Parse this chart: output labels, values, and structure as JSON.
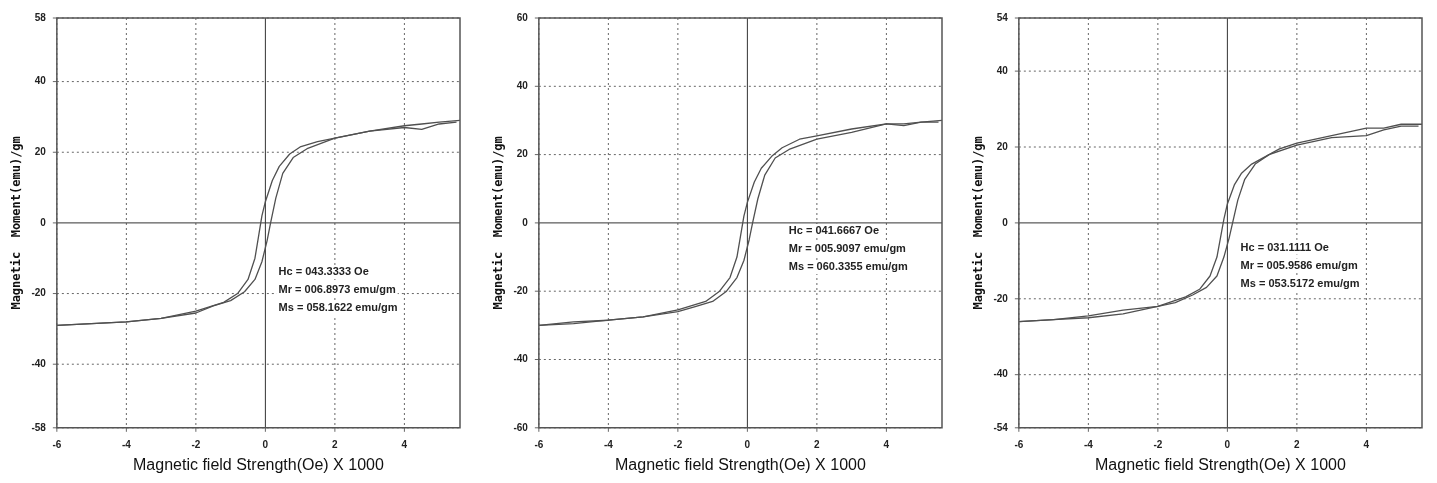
{
  "chart_data": [
    {
      "type": "line",
      "xlabel": "Magnetic field Strength(Oe) X 1000",
      "ylabel": "Magnetic  Moment(emu)/gm",
      "xlim": [
        -6,
        5.6
      ],
      "ylim": [
        -58,
        58
      ],
      "xticks": [
        -6,
        -4,
        -2,
        0,
        2,
        4
      ],
      "yticks": [
        -58,
        -40,
        -20,
        0,
        20,
        40,
        58
      ],
      "grid": true,
      "legend": false,
      "marker": "none",
      "line_style": "solid",
      "annotations": [
        "Hc = 043.3333 Oe",
        "Mr = 006.8973 emu/gm",
        "Ms = 058.1622 emu/gm"
      ],
      "series": [
        {
          "color": "#505050",
          "x": [
            5.6,
            5,
            4.5,
            4,
            3,
            2,
            1.5,
            1,
            0.7,
            0.4,
            0.2,
            0,
            -0.1,
            -0.2,
            -0.3,
            -0.5,
            -0.8,
            -1.2,
            -2,
            -3,
            -4,
            -5,
            -6
          ],
          "values": [
            29,
            28.5,
            28,
            27.5,
            26,
            24,
            23,
            21.5,
            19.5,
            16,
            12,
            6,
            2,
            -4,
            -10,
            -16,
            -20,
            -22.5,
            -25,
            -27,
            -28,
            -28.5,
            -29
          ]
        },
        {
          "color": "#505050",
          "x": [
            -6,
            -5,
            -4,
            -3,
            -2,
            -1.5,
            -1,
            -0.6,
            -0.3,
            -0.1,
            0.05,
            0.15,
            0.3,
            0.5,
            0.8,
            1.2,
            2,
            3,
            4,
            4.5,
            5,
            5.5
          ],
          "values": [
            -29,
            -28.5,
            -28,
            -27,
            -25.5,
            -23.5,
            -22,
            -19.5,
            -16,
            -11,
            -5,
            0,
            7,
            14,
            18.5,
            21,
            24,
            26,
            27,
            26.5,
            28,
            28.5
          ]
        }
      ]
    },
    {
      "type": "line",
      "xlabel": "Magnetic field Strength(Oe) X 1000",
      "ylabel": "Magnetic  Moment(emu)/gm",
      "xlim": [
        -6,
        5.6
      ],
      "ylim": [
        -60,
        60
      ],
      "xticks": [
        -6,
        -4,
        -2,
        0,
        2,
        4
      ],
      "yticks": [
        -60,
        -40,
        -20,
        0,
        20,
        40,
        60
      ],
      "grid": true,
      "legend": false,
      "marker": "none",
      "line_style": "solid",
      "annotations": [
        "Hc = 041.6667 Oe",
        "Mr = 005.9097 emu/gm",
        "Ms = 060.3355 emu/gm"
      ],
      "series": [
        {
          "color": "#505050",
          "x": [
            5.6,
            5,
            4.5,
            4,
            3,
            2,
            1.5,
            1,
            0.7,
            0.4,
            0.2,
            0,
            -0.1,
            -0.2,
            -0.3,
            -0.5,
            -0.8,
            -1.2,
            -2,
            -3,
            -4,
            -5,
            -6
          ],
          "values": [
            30,
            29.5,
            29,
            29,
            27.5,
            25.5,
            24.5,
            22,
            19.5,
            16,
            12,
            6,
            2,
            -4,
            -10,
            -16,
            -20,
            -23,
            -25.5,
            -27.5,
            -28.5,
            -29.5,
            -30
          ]
        },
        {
          "color": "#505050",
          "x": [
            -6,
            -5,
            -4,
            -3,
            -2,
            -1.5,
            -1,
            -0.6,
            -0.3,
            -0.1,
            0.05,
            0.15,
            0.3,
            0.5,
            0.8,
            1.2,
            2,
            3,
            4,
            4.5,
            5,
            5.5
          ],
          "values": [
            -30,
            -29,
            -28.5,
            -27.5,
            -26,
            -24.5,
            -23,
            -20,
            -16,
            -11,
            -5,
            0,
            7,
            14,
            19,
            21.5,
            24.5,
            26.5,
            29,
            28.5,
            29.5,
            29.5
          ]
        }
      ]
    },
    {
      "type": "line",
      "xlabel": "Magnetic field Strength(Oe) X 1000",
      "ylabel": "Magnetic  Moment(emu)/gm",
      "xlim": [
        -6,
        5.6
      ],
      "ylim": [
        -54,
        54
      ],
      "xticks": [
        -6,
        -4,
        -2,
        0,
        2,
        4
      ],
      "yticks": [
        -54,
        -40,
        -20,
        0,
        20,
        40,
        54
      ],
      "grid": true,
      "legend": false,
      "marker": "none",
      "line_style": "solid",
      "annotations": [
        "Hc = 031.1111 Oe",
        "Mr = 005.9586 emu/gm",
        "Ms = 053.5172 emu/gm"
      ],
      "series": [
        {
          "color": "#505050",
          "x": [
            5.6,
            5,
            4.5,
            4,
            3,
            2,
            1.5,
            1,
            0.7,
            0.4,
            0.2,
            0,
            -0.1,
            -0.2,
            -0.3,
            -0.5,
            -0.8,
            -1.2,
            -2,
            -3,
            -4,
            -5,
            -6
          ],
          "values": [
            26,
            26,
            25,
            25,
            23,
            21,
            19.5,
            17,
            15.5,
            13,
            10,
            5,
            1,
            -4,
            -9,
            -14,
            -17.5,
            -19.5,
            -22,
            -23,
            -24.5,
            -25.5,
            -26
          ]
        },
        {
          "color": "#505050",
          "x": [
            -6,
            -5,
            -4,
            -3,
            -2,
            -1.5,
            -1,
            -0.6,
            -0.3,
            -0.1,
            0.05,
            0.15,
            0.3,
            0.5,
            0.8,
            1.2,
            2,
            3,
            4,
            4.5,
            5,
            5.5
          ],
          "values": [
            -26,
            -25.5,
            -25,
            -24,
            -22,
            -21,
            -19,
            -17,
            -14,
            -9,
            -4,
            0,
            6,
            11.5,
            15.5,
            18,
            20.5,
            22.5,
            23,
            24.5,
            25.5,
            25.5
          ]
        }
      ]
    }
  ]
}
